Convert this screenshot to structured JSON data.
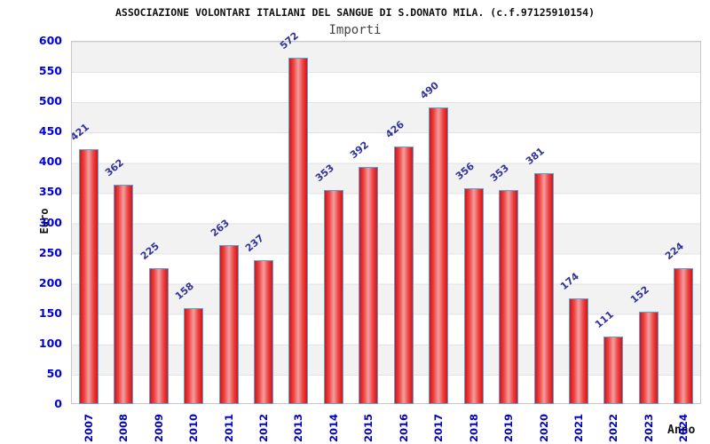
{
  "title": "ASSOCIAZIONE VOLONTARI ITALIANI DEL SANGUE DI S.DONATO MILA. (c.f.97125910154)",
  "subtitle": "Importi",
  "chart_data": {
    "type": "bar",
    "title": "ASSOCIAZIONE VOLONTARI ITALIANI DEL SANGUE DI S.DONATO MILA. (c.f.97125910154)",
    "subtitle": "Importi",
    "xlabel": "Anno",
    "ylabel": "Euro",
    "categories": [
      "2007",
      "2008",
      "2009",
      "2010",
      "2011",
      "2012",
      "2013",
      "2014",
      "2015",
      "2016",
      "2017",
      "2018",
      "2019",
      "2020",
      "2021",
      "2022",
      "2023",
      "2024"
    ],
    "values": [
      421,
      362,
      225,
      158,
      263,
      237,
      572,
      353,
      392,
      426,
      490,
      356,
      353,
      381,
      174,
      111,
      152,
      224
    ],
    "ylim": [
      0,
      600
    ],
    "ytick_step": 50,
    "grid": "horizontal alternating bands every 50",
    "legend": "none",
    "colors": {
      "bar_fill_edge": "#d31414",
      "bar_fill_center": "#f2a0a0",
      "bar_border": "#58a2de",
      "axis_tick_label": "#0000dd",
      "category_label": "#0000cc",
      "value_label": "#333399",
      "band_gray": "#f2f2f2",
      "band_white": "#ffffff",
      "gridline": "#e3e3e3",
      "plot_border": "#c8c8c8",
      "title_color": "#111111",
      "subtitle_color": "#444444"
    }
  }
}
